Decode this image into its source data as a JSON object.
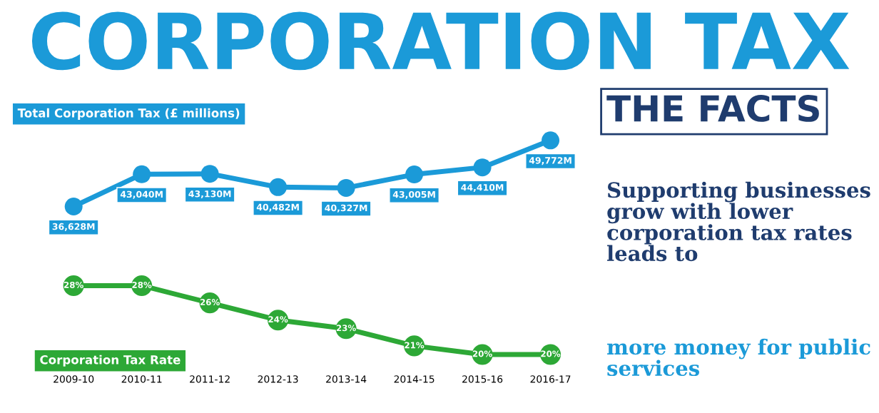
{
  "chart_data": [
    {
      "type": "line",
      "title": "CORPORATION TAX",
      "subtitle": "Total Corporation Tax (£ millions)",
      "categories": [
        "2009-10",
        "2010-11",
        "2011-12",
        "2012-13",
        "2013-14",
        "2014-15",
        "2015-16",
        "2016-17"
      ],
      "series": [
        {
          "color": "#1b9ad8",
          "values": [
            36628,
            43040,
            43130,
            40482,
            40327,
            43005,
            44410,
            49772
          ],
          "value_labels": [
            "36,628M",
            "43,040M",
            "43,130M",
            "40,482M",
            "40,327M",
            "43,005M",
            "44,410M",
            "49,772M"
          ]
        }
      ],
      "marker": "circle",
      "tick_labels": false,
      "annotations": [
        "THE FACTS",
        "Supporting businesses grow with lower corporation tax rates leads to",
        "more money for public services"
      ]
    },
    {
      "type": "line",
      "title": "Corporation Tax Rate",
      "categories": [
        "2009-10",
        "2010-11",
        "2011-12",
        "2012-13",
        "2013-14",
        "2014-15",
        "2015-16",
        "2016-17"
      ],
      "series": [
        {
          "color": "#2da836",
          "values": [
            28,
            28,
            26,
            24,
            23,
            21,
            20,
            20
          ],
          "value_labels": [
            "28%",
            "28%",
            "26%",
            "24%",
            "23%",
            "21%",
            "20%",
            "20%"
          ]
        }
      ],
      "marker": "circle",
      "tick_labels": "x"
    }
  ]
}
